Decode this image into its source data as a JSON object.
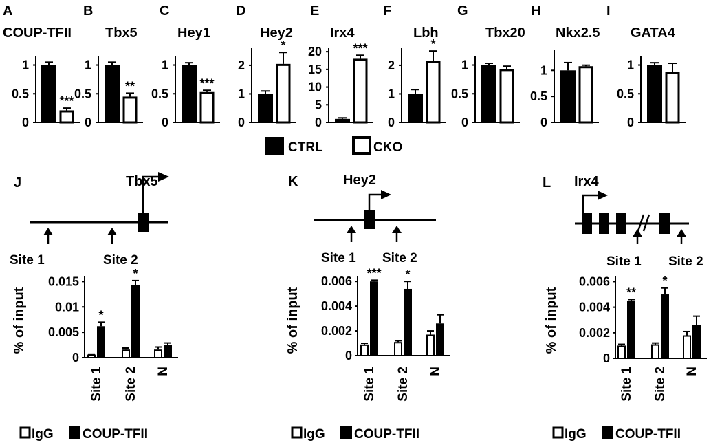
{
  "legend_top": {
    "ctrl": "CTRL",
    "cko": "CKO"
  },
  "legend_bottom": {
    "igg": "IgG",
    "coup": "COUP-TFII"
  },
  "chart_data": [
    {
      "type": "bar",
      "panel": "A",
      "title": "COUP-TFII",
      "ylim": [
        0,
        1.15
      ],
      "yticks": [
        "0",
        "0.5",
        "1"
      ],
      "ytick_values": [
        0,
        0.5,
        1
      ],
      "series": [
        {
          "name": "CTRL",
          "values": [
            1.0
          ],
          "errors": [
            0.05
          ]
        },
        {
          "name": "CKO",
          "values": [
            0.21
          ],
          "errors": [
            0.04
          ]
        }
      ],
      "annotations": [
        "***"
      ]
    },
    {
      "type": "bar",
      "panel": "B",
      "title": "Tbx5",
      "ylim": [
        0,
        1.15
      ],
      "yticks": [
        "0",
        "0.5",
        "1"
      ],
      "ytick_values": [
        0,
        0.5,
        1
      ],
      "series": [
        {
          "name": "CTRL",
          "values": [
            1.0
          ],
          "errors": [
            0.05
          ]
        },
        {
          "name": "CKO",
          "values": [
            0.45
          ],
          "errors": [
            0.06
          ]
        }
      ],
      "annotations": [
        "**"
      ]
    },
    {
      "type": "bar",
      "panel": "C",
      "title": "Hey1",
      "ylim": [
        0,
        1.15
      ],
      "yticks": [
        "0",
        "0.5",
        "1"
      ],
      "ytick_values": [
        0,
        0.5,
        1
      ],
      "series": [
        {
          "name": "CTRL",
          "values": [
            1.0
          ],
          "errors": [
            0.04
          ]
        },
        {
          "name": "CKO",
          "values": [
            0.53
          ],
          "errors": [
            0.03
          ]
        }
      ],
      "annotations": [
        "***"
      ]
    },
    {
      "type": "bar",
      "panel": "D",
      "title": "Hey2",
      "ylim": [
        0,
        2.6
      ],
      "yticks": [
        "0",
        "1",
        "2"
      ],
      "ytick_values": [
        0,
        1,
        2
      ],
      "series": [
        {
          "name": "CTRL",
          "values": [
            1.0
          ],
          "errors": [
            0.1
          ]
        },
        {
          "name": "CKO",
          "values": [
            2.05
          ],
          "errors": [
            0.4
          ]
        }
      ],
      "annotations": [
        "*"
      ]
    },
    {
      "type": "bar",
      "panel": "E",
      "title": "Irx4",
      "ylim": [
        0,
        21
      ],
      "yticks": [
        "0",
        "5",
        "10",
        "15",
        "20"
      ],
      "ytick_values": [
        0,
        5,
        10,
        15,
        20
      ],
      "series": [
        {
          "name": "CTRL",
          "values": [
            1.0
          ],
          "errors": [
            0.3
          ]
        },
        {
          "name": "CKO",
          "values": [
            18
          ],
          "errors": [
            1.0
          ]
        }
      ],
      "annotations": [
        "***"
      ]
    },
    {
      "type": "bar",
      "panel": "F",
      "title": "Lbh",
      "ylim": [
        0,
        2.6
      ],
      "yticks": [
        "0",
        "1",
        "2"
      ],
      "ytick_values": [
        0,
        1,
        2
      ],
      "series": [
        {
          "name": "CTRL",
          "values": [
            1.0
          ],
          "errors": [
            0.15
          ]
        },
        {
          "name": "CKO",
          "values": [
            2.15
          ],
          "errors": [
            0.35
          ]
        }
      ],
      "annotations": [
        "*"
      ]
    },
    {
      "type": "bar",
      "panel": "G",
      "title": "Tbx20",
      "ylim": [
        0,
        1.15
      ],
      "yticks": [
        "0",
        "0.5",
        "1"
      ],
      "ytick_values": [
        0,
        0.5,
        1
      ],
      "series": [
        {
          "name": "CTRL",
          "values": [
            1.0
          ],
          "errors": [
            0.03
          ]
        },
        {
          "name": "CKO",
          "values": [
            0.93
          ],
          "errors": [
            0.05
          ]
        }
      ],
      "annotations": [
        ""
      ]
    },
    {
      "type": "bar",
      "panel": "H",
      "title": "Nkx2.5",
      "ylim": [
        0,
        1.4
      ],
      "yticks": [
        "0",
        "0.5",
        "1"
      ],
      "ytick_values": [
        0,
        0.5,
        1
      ],
      "series": [
        {
          "name": "CTRL",
          "values": [
            1.0
          ],
          "errors": [
            0.15
          ]
        },
        {
          "name": "CKO",
          "values": [
            1.08
          ],
          "errors": [
            0.02
          ]
        }
      ],
      "annotations": [
        ""
      ]
    },
    {
      "type": "bar",
      "panel": "I",
      "title": "GATA4",
      "ylim": [
        0,
        1.15
      ],
      "yticks": [
        "0",
        "0.5",
        "1"
      ],
      "ytick_values": [
        0,
        0.5,
        1
      ],
      "series": [
        {
          "name": "CTRL",
          "values": [
            1.0
          ],
          "errors": [
            0.04
          ]
        },
        {
          "name": "CKO",
          "values": [
            0.88
          ],
          "errors": [
            0.15
          ]
        }
      ],
      "annotations": [
        ""
      ]
    },
    {
      "type": "bar",
      "panel": "J",
      "gene": "Tbx5",
      "ylabel": "% of input",
      "ylim": [
        0,
        0.016
      ],
      "yticks": [
        "0",
        "0.005",
        "0.01",
        "0.015"
      ],
      "ytick_values": [
        0,
        0.005,
        0.01,
        0.015
      ],
      "categories": [
        "Site 1",
        "Site 2",
        "N"
      ],
      "site_labels": [
        "Site 1",
        "Site 2"
      ],
      "series": [
        {
          "name": "IgG",
          "values": [
            0.0006,
            0.0016,
            0.0016
          ],
          "errors": [
            0.0001,
            0.0003,
            0.0005
          ]
        },
        {
          "name": "COUP-TFII",
          "values": [
            0.0062,
            0.0143,
            0.0025
          ],
          "errors": [
            0.0008,
            0.0009,
            0.0004
          ]
        }
      ],
      "annotations": [
        "*",
        "*",
        ""
      ]
    },
    {
      "type": "bar",
      "panel": "K",
      "gene": "Hey2",
      "ylabel": "% of input",
      "ylim": [
        0,
        0.0064
      ],
      "yticks": [
        "0",
        "0.002",
        "0.004",
        "0.006"
      ],
      "ytick_values": [
        0,
        0.002,
        0.004,
        0.006
      ],
      "categories": [
        "Site 1",
        "Site 2",
        "N"
      ],
      "site_labels": [
        "Site 1",
        "Site 2"
      ],
      "series": [
        {
          "name": "IgG",
          "values": [
            0.0009,
            0.0011,
            0.0017
          ],
          "errors": [
            0.0001,
            0.0001,
            0.0003
          ]
        },
        {
          "name": "COUP-TFII",
          "values": [
            0.006,
            0.0054,
            0.0026
          ],
          "errors": [
            0.0001,
            0.0006,
            0.0007
          ]
        }
      ],
      "annotations": [
        "***",
        "*",
        ""
      ]
    },
    {
      "type": "bar",
      "panel": "L",
      "gene": "Irx4",
      "ylabel": "% of input",
      "ylim": [
        0,
        0.0064
      ],
      "yticks": [
        "0",
        "0.002",
        "0.004",
        "0.006"
      ],
      "ytick_values": [
        0,
        0.002,
        0.004,
        0.006
      ],
      "categories": [
        "Site 1",
        "Site 2",
        "N"
      ],
      "site_labels": [
        "Site 1",
        "Site 2"
      ],
      "series": [
        {
          "name": "IgG",
          "values": [
            0.001,
            0.0011,
            0.0018
          ],
          "errors": [
            0.0001,
            0.0001,
            0.0003
          ]
        },
        {
          "name": "COUP-TFII",
          "values": [
            0.0045,
            0.005,
            0.0026
          ],
          "errors": [
            0.0001,
            0.0005,
            0.0007
          ]
        }
      ],
      "annotations": [
        "**",
        "*",
        ""
      ]
    }
  ]
}
